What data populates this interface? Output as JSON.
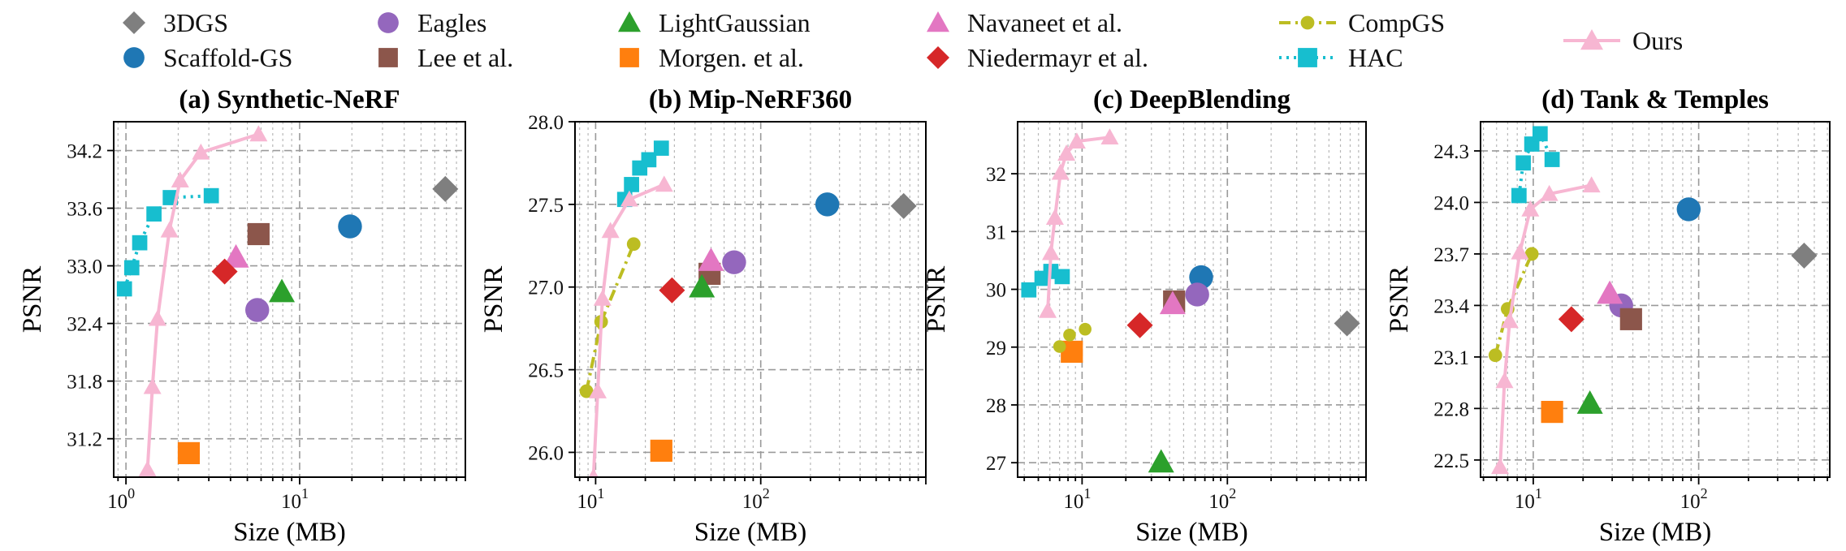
{
  "figure": {
    "y_label": "PSNR",
    "x_label": "Size (MB)"
  },
  "colors": {
    "3DGS": "#7f7f7f",
    "Scaffold-GS": "#1f77b4",
    "Eagles": "#9467bd",
    "Lee et al.": "#8c564b",
    "LightGaussian": "#2ca02c",
    "Morgen. et al.": "#ff7f0e",
    "Navaneet et al.": "#e377c2",
    "Niedermayr et al.": "#d62728",
    "CompGS": "#bcbd22",
    "HAC": "#17becf",
    "Ours": "#f7b6d2"
  },
  "legend": [
    {
      "name": "3DGS",
      "marker": "diamond",
      "style": "marker"
    },
    {
      "name": "Scaffold-GS",
      "marker": "circle",
      "style": "marker"
    },
    {
      "name": "Eagles",
      "marker": "circle",
      "style": "marker"
    },
    {
      "name": "Lee et al.",
      "marker": "square",
      "style": "marker"
    },
    {
      "name": "LightGaussian",
      "marker": "triangle",
      "style": "marker"
    },
    {
      "name": "Morgen. et al.",
      "marker": "square",
      "style": "marker"
    },
    {
      "name": "Navaneet et al.",
      "marker": "triangle",
      "style": "marker"
    },
    {
      "name": "Niedermayr et al.",
      "marker": "diamond",
      "style": "marker"
    },
    {
      "name": "CompGS",
      "marker": "circle-small",
      "style": "dashdot"
    },
    {
      "name": "HAC",
      "marker": "square",
      "style": "dotted"
    },
    {
      "name": "Ours",
      "marker": "triangle",
      "style": "solid"
    }
  ],
  "chart_data": [
    {
      "type": "scatter",
      "title": "(a) Synthetic-NeRF",
      "xlabel": "Size (MB)",
      "ylabel": "PSNR",
      "xscale": "log",
      "xlim": [
        0.85,
        90
      ],
      "ylim": [
        30.8,
        34.5
      ],
      "xticks": [
        {
          "v": 1,
          "l": "10",
          "s": "0"
        },
        {
          "v": 10,
          "l": "10",
          "s": "1"
        }
      ],
      "yticks": [
        31.2,
        31.8,
        32.4,
        33.0,
        33.6,
        34.2
      ],
      "points": [
        {
          "m": "3DGS",
          "x": 69,
          "y": 33.8
        },
        {
          "m": "Scaffold-GS",
          "x": 19.5,
          "y": 33.41
        },
        {
          "m": "Eagles",
          "x": 5.7,
          "y": 32.54
        },
        {
          "m": "Lee et al.",
          "x": 5.8,
          "y": 33.33
        },
        {
          "m": "LightGaussian",
          "x": 7.9,
          "y": 32.73
        },
        {
          "m": "Morgen. et al.",
          "x": 2.3,
          "y": 31.05
        },
        {
          "m": "Navaneet et al.",
          "x": 4.3,
          "y": 33.09
        },
        {
          "m": "Niedermayr et al.",
          "x": 3.7,
          "y": 32.94
        }
      ],
      "lines": [
        {
          "m": "HAC",
          "x": [
            0.98,
            1.08,
            1.2,
            1.45,
            1.8,
            3.1
          ],
          "y": [
            32.76,
            32.98,
            33.24,
            33.54,
            33.71,
            33.73
          ]
        },
        {
          "m": "Ours",
          "x": [
            1.33,
            1.42,
            1.52,
            1.78,
            2.05,
            2.7,
            5.8
          ],
          "y": [
            30.88,
            31.74,
            32.45,
            33.37,
            33.89,
            34.18,
            34.37
          ]
        }
      ]
    },
    {
      "type": "scatter",
      "title": "(b) Mip-NeRF360",
      "xlabel": "Size (MB)",
      "ylabel": "PSNR",
      "xscale": "log",
      "xlim": [
        7.5,
        1000
      ],
      "ylim": [
        25.85,
        28.0
      ],
      "xticks": [
        {
          "v": 10,
          "l": "10",
          "s": "1"
        },
        {
          "v": 100,
          "l": "10",
          "s": "2"
        }
      ],
      "yticks": [
        26.0,
        26.5,
        27.0,
        27.5,
        28.0
      ],
      "points": [
        {
          "m": "3DGS",
          "x": 734,
          "y": 27.49
        },
        {
          "m": "Scaffold-GS",
          "x": 253,
          "y": 27.5
        },
        {
          "m": "Eagles",
          "x": 69,
          "y": 27.15
        },
        {
          "m": "Lee et al.",
          "x": 49,
          "y": 27.08
        },
        {
          "m": "LightGaussian",
          "x": 44,
          "y": 27.0
        },
        {
          "m": "Morgen. et al.",
          "x": 25,
          "y": 26.01
        },
        {
          "m": "Navaneet et al.",
          "x": 50,
          "y": 27.16
        },
        {
          "m": "Niedermayr et al.",
          "x": 29,
          "y": 26.98
        }
      ],
      "lines": [
        {
          "m": "CompGS",
          "x": [
            8.8,
            10.8,
            17
          ],
          "y": [
            26.37,
            26.79,
            27.26
          ]
        },
        {
          "m": "HAC",
          "x": [
            15,
            16.5,
            18.5,
            21,
            25
          ],
          "y": [
            27.53,
            27.62,
            27.72,
            27.77,
            27.84
          ]
        },
        {
          "m": "Ours",
          "x": [
            9.7,
            10.3,
            11,
            12.3,
            16,
            26
          ],
          "y": [
            25.85,
            26.37,
            26.93,
            27.34,
            27.53,
            27.62
          ]
        }
      ]
    },
    {
      "type": "scatter",
      "title": "(c) DeepBlending",
      "xlabel": "Size (MB)",
      "ylabel": "PSNR",
      "xscale": "log",
      "xlim": [
        3.6,
        900
      ],
      "ylim": [
        26.75,
        32.9
      ],
      "xticks": [
        {
          "v": 10,
          "l": "10",
          "s": "1"
        },
        {
          "v": 100,
          "l": "10",
          "s": "2"
        }
      ],
      "yticks": [
        27,
        28,
        29,
        30,
        31,
        32
      ],
      "points": [
        {
          "m": "3DGS",
          "x": 666,
          "y": 29.41
        },
        {
          "m": "Scaffold-GS",
          "x": 66,
          "y": 30.21
        },
        {
          "m": "Eagles",
          "x": 62,
          "y": 29.91
        },
        {
          "m": "Lee et al.",
          "x": 43,
          "y": 29.79
        },
        {
          "m": "LightGaussian",
          "x": 35,
          "y": 27.01
        },
        {
          "m": "Morgen. et al.",
          "x": 8.5,
          "y": 28.92
        },
        {
          "m": "Navaneet et al.",
          "x": 42,
          "y": 29.75
        },
        {
          "m": "Niedermayr et al.",
          "x": 25,
          "y": 29.38
        },
        {
          "m": "CompGS",
          "x": 7,
          "y": 29.01
        },
        {
          "m": "CompGS",
          "x": 8.2,
          "y": 29.21
        },
        {
          "m": "CompGS",
          "x": 10.5,
          "y": 29.31
        }
      ],
      "lines": [
        {
          "m": "HAC",
          "x": [
            4.3,
            5.3,
            6.1,
            7.3
          ],
          "y": [
            29.99,
            30.19,
            30.31,
            30.22
          ]
        },
        {
          "m": "Ours",
          "x": [
            5.8,
            6.1,
            6.5,
            7.1,
            7.8,
            9.2,
            15.5
          ],
          "y": [
            29.63,
            30.63,
            31.24,
            32.02,
            32.35,
            32.56,
            32.63
          ]
        }
      ]
    },
    {
      "type": "scatter",
      "title": "(d) Tank & Temples",
      "xlabel": "Size (MB)",
      "ylabel": "PSNR",
      "xscale": "log",
      "xlim": [
        4.8,
        620
      ],
      "ylim": [
        22.4,
        24.47
      ],
      "xticks": [
        {
          "v": 10,
          "l": "10",
          "s": "1"
        },
        {
          "v": 100,
          "l": "10",
          "s": "2"
        }
      ],
      "yticks": [
        22.5,
        22.8,
        23.1,
        23.4,
        23.7,
        24.0,
        24.3
      ],
      "points": [
        {
          "m": "3DGS",
          "x": 434,
          "y": 23.69
        },
        {
          "m": "Scaffold-GS",
          "x": 87,
          "y": 23.96
        },
        {
          "m": "Eagles",
          "x": 34,
          "y": 23.4
        },
        {
          "m": "Lee et al.",
          "x": 39,
          "y": 23.32
        },
        {
          "m": "LightGaussian",
          "x": 22,
          "y": 22.83
        },
        {
          "m": "Morgen. et al.",
          "x": 13,
          "y": 22.78
        },
        {
          "m": "Navaneet et al.",
          "x": 29,
          "y": 23.47
        },
        {
          "m": "Niedermayr et al.",
          "x": 17,
          "y": 23.32
        }
      ],
      "lines": [
        {
          "m": "CompGS",
          "x": [
            5.9,
            7,
            9.8
          ],
          "y": [
            23.11,
            23.38,
            23.7
          ]
        },
        {
          "m": "HAC",
          "x": [
            8.2,
            8.7,
            9.8,
            11,
            13
          ],
          "y": [
            24.04,
            24.23,
            24.34,
            24.4,
            24.25
          ]
        },
        {
          "m": "Ours",
          "x": [
            6.3,
            6.7,
            7.2,
            8.3,
            9.6,
            12.5,
            22.5
          ],
          "y": [
            22.46,
            22.96,
            23.31,
            23.71,
            23.96,
            24.05,
            24.1
          ]
        }
      ]
    }
  ]
}
